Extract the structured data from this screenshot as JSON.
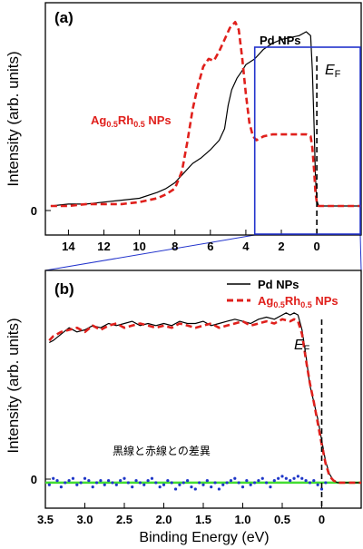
{
  "colors": {
    "pd": "#000000",
    "agrh": "#e0201c",
    "difference": "#1f37c8",
    "zero_line": "#44dd33",
    "zoom_box": "#2233cc",
    "fermi_line": "#000000"
  },
  "chart_data": [
    {
      "panel_label": "(a)",
      "type": "line",
      "ylabel": "Intensity (arb. units)",
      "xlabel": "",
      "x_reversed": true,
      "xlim": [
        15.3,
        -2.5
      ],
      "ylim": [
        -0.15,
        1.05
      ],
      "x_ticks": [
        14,
        12,
        10,
        8,
        6,
        4,
        2,
        0
      ],
      "y_ticks": [
        0
      ],
      "zero_tick_label": "0",
      "fermi_label": "E",
      "fermi_subscript": "F",
      "fermi_x": 0,
      "zoom_box_x": [
        3.5,
        -2.5
      ],
      "series": [
        {
          "name": "Pd NPs",
          "color": "#000000",
          "style": "solid",
          "x": [
            15.0,
            14.0,
            13.0,
            12.0,
            11.0,
            10.0,
            9.0,
            8.5,
            8.0,
            7.5,
            7.0,
            6.5,
            6.0,
            5.5,
            5.2,
            5.0,
            4.8,
            4.5,
            4.2,
            4.0,
            3.5,
            3.0,
            2.5,
            2.0,
            1.5,
            1.0,
            0.6,
            0.35,
            0.25,
            0.15,
            0.08,
            0.0,
            -0.1,
            -0.3,
            -1.0,
            -2.5
          ],
          "y": [
            0.0,
            0.01,
            0.01,
            0.02,
            0.03,
            0.04,
            0.07,
            0.09,
            0.12,
            0.17,
            0.22,
            0.25,
            0.29,
            0.34,
            0.4,
            0.52,
            0.6,
            0.66,
            0.7,
            0.73,
            0.76,
            0.81,
            0.84,
            0.86,
            0.87,
            0.88,
            0.9,
            0.88,
            0.7,
            0.4,
            0.15,
            0.03,
            0.0,
            0.0,
            0.0,
            0.0
          ]
        },
        {
          "name": "Ag0.5Rh0.5 NPs",
          "color": "#e0201c",
          "style": "dashed",
          "x": [
            15.0,
            14.0,
            13.0,
            12.0,
            11.0,
            10.0,
            9.0,
            8.5,
            8.0,
            7.6,
            7.3,
            7.0,
            6.7,
            6.4,
            6.1,
            5.8,
            5.5,
            5.2,
            4.9,
            4.6,
            4.4,
            4.2,
            4.0,
            3.8,
            3.6,
            3.4,
            3.2,
            3.0,
            2.5,
            2.0,
            1.5,
            1.0,
            0.6,
            0.35,
            0.25,
            0.15,
            0.08,
            0.0,
            -0.1,
            -0.3,
            -1.0,
            -2.5
          ],
          "y": [
            0.0,
            0.0,
            0.01,
            0.01,
            0.01,
            0.02,
            0.04,
            0.06,
            0.09,
            0.18,
            0.33,
            0.5,
            0.62,
            0.72,
            0.76,
            0.75,
            0.8,
            0.86,
            0.92,
            0.95,
            0.91,
            0.76,
            0.58,
            0.43,
            0.36,
            0.34,
            0.35,
            0.36,
            0.37,
            0.37,
            0.37,
            0.37,
            0.37,
            0.36,
            0.3,
            0.18,
            0.07,
            0.02,
            0.0,
            0.0,
            0.0,
            0.0
          ]
        }
      ]
    },
    {
      "panel_label": "(b)",
      "type": "line",
      "ylabel": "Intensity (arb. units)",
      "xlabel": "Binding Energy (eV)",
      "x_reversed": true,
      "xlim": [
        3.5,
        -0.5
      ],
      "ylim": [
        -0.12,
        1.0
      ],
      "x_ticks": [
        3.5,
        3.0,
        2.5,
        2.0,
        1.5,
        1.0,
        0.5,
        0
      ],
      "x_tick_labels": [
        "3.5",
        "3.0",
        "2.5",
        "2.0",
        "1.5",
        "1.0",
        "0.5",
        "0"
      ],
      "y_ticks": [
        0
      ],
      "zero_tick_label": "0",
      "fermi_label": "E",
      "fermi_subscript": "F",
      "fermi_x": 0,
      "difference_label": "黒線と赤線との差異",
      "series": [
        {
          "name": "Pd NPs",
          "color": "#000000",
          "style": "solid",
          "x": [
            3.45,
            3.4,
            3.3,
            3.2,
            3.1,
            3.0,
            2.9,
            2.8,
            2.7,
            2.6,
            2.5,
            2.4,
            2.3,
            2.2,
            2.1,
            2.0,
            1.9,
            1.8,
            1.7,
            1.6,
            1.5,
            1.4,
            1.3,
            1.2,
            1.1,
            1.0,
            0.9,
            0.8,
            0.7,
            0.6,
            0.5,
            0.45,
            0.4,
            0.35,
            0.3,
            0.25,
            0.2,
            0.15,
            0.1,
            0.05,
            0.0,
            -0.05,
            -0.1,
            -0.15,
            -0.2,
            -0.3,
            -0.5
          ],
          "y": [
            0.66,
            0.67,
            0.7,
            0.73,
            0.71,
            0.72,
            0.74,
            0.73,
            0.75,
            0.74,
            0.75,
            0.76,
            0.74,
            0.75,
            0.74,
            0.75,
            0.74,
            0.76,
            0.75,
            0.75,
            0.76,
            0.74,
            0.75,
            0.76,
            0.77,
            0.76,
            0.75,
            0.77,
            0.78,
            0.77,
            0.79,
            0.8,
            0.79,
            0.8,
            0.79,
            0.72,
            0.6,
            0.46,
            0.38,
            0.3,
            0.2,
            0.1,
            0.04,
            0.01,
            0.0,
            0.0,
            0.0
          ]
        },
        {
          "name": "Ag0.5Rh0.5 NPs",
          "color": "#e0201c",
          "style": "dashed",
          "x": [
            3.45,
            3.4,
            3.3,
            3.2,
            3.1,
            3.0,
            2.9,
            2.8,
            2.7,
            2.6,
            2.5,
            2.4,
            2.3,
            2.2,
            2.1,
            2.0,
            1.9,
            1.8,
            1.7,
            1.6,
            1.5,
            1.4,
            1.3,
            1.2,
            1.1,
            1.0,
            0.9,
            0.8,
            0.7,
            0.6,
            0.5,
            0.4,
            0.35,
            0.3,
            0.25,
            0.2,
            0.15,
            0.1,
            0.05,
            0.0,
            -0.05,
            -0.1,
            -0.15,
            -0.2,
            -0.3,
            -0.5
          ],
          "y": [
            0.67,
            0.69,
            0.71,
            0.72,
            0.73,
            0.71,
            0.74,
            0.72,
            0.74,
            0.75,
            0.73,
            0.74,
            0.75,
            0.74,
            0.73,
            0.74,
            0.73,
            0.75,
            0.74,
            0.73,
            0.74,
            0.75,
            0.73,
            0.74,
            0.75,
            0.76,
            0.74,
            0.75,
            0.76,
            0.75,
            0.77,
            0.76,
            0.77,
            0.76,
            0.7,
            0.58,
            0.47,
            0.38,
            0.28,
            0.18,
            0.09,
            0.03,
            0.01,
            0.0,
            0.0,
            0.0
          ]
        },
        {
          "name": "difference",
          "color": "#1f37c8",
          "style": "dots",
          "x": [
            3.45,
            3.4,
            3.35,
            3.3,
            3.25,
            3.2,
            3.15,
            3.1,
            3.05,
            3.0,
            2.95,
            2.9,
            2.85,
            2.8,
            2.75,
            2.7,
            2.65,
            2.6,
            2.55,
            2.5,
            2.45,
            2.4,
            2.35,
            2.3,
            2.25,
            2.2,
            2.15,
            2.1,
            2.05,
            2.0,
            1.95,
            1.9,
            1.85,
            1.8,
            1.75,
            1.7,
            1.65,
            1.6,
            1.55,
            1.5,
            1.45,
            1.4,
            1.35,
            1.3,
            1.25,
            1.2,
            1.15,
            1.1,
            1.05,
            1.0,
            0.95,
            0.9,
            0.85,
            0.8,
            0.75,
            0.7,
            0.65,
            0.6,
            0.55,
            0.5,
            0.45,
            0.4,
            0.35,
            0.3,
            0.25,
            0.2,
            0.15,
            0.1,
            0.05,
            0.0,
            -0.05
          ],
          "y": [
            -0.01,
            0.02,
            0.01,
            -0.02,
            0.0,
            0.01,
            0.02,
            -0.01,
            0.0,
            0.02,
            0.01,
            -0.02,
            0.0,
            0.01,
            -0.01,
            0.01,
            0.0,
            -0.01,
            0.01,
            0.02,
            0.0,
            -0.02,
            0.01,
            0.0,
            -0.01,
            0.01,
            0.02,
            0.0,
            -0.02,
            -0.01,
            0.01,
            0.0,
            -0.03,
            -0.01,
            0.0,
            0.01,
            -0.02,
            -0.03,
            0.0,
            -0.01,
            0.01,
            -0.02,
            0.0,
            -0.03,
            -0.01,
            0.0,
            0.01,
            0.02,
            0.0,
            -0.02,
            0.01,
            -0.01,
            0.0,
            0.01,
            0.02,
            0.0,
            -0.02,
            0.01,
            0.02,
            0.03,
            0.02,
            0.01,
            0.02,
            0.03,
            0.02,
            0.01,
            0.0,
            0.01,
            -0.01,
            -0.03,
            0.0
          ]
        }
      ]
    }
  ]
}
